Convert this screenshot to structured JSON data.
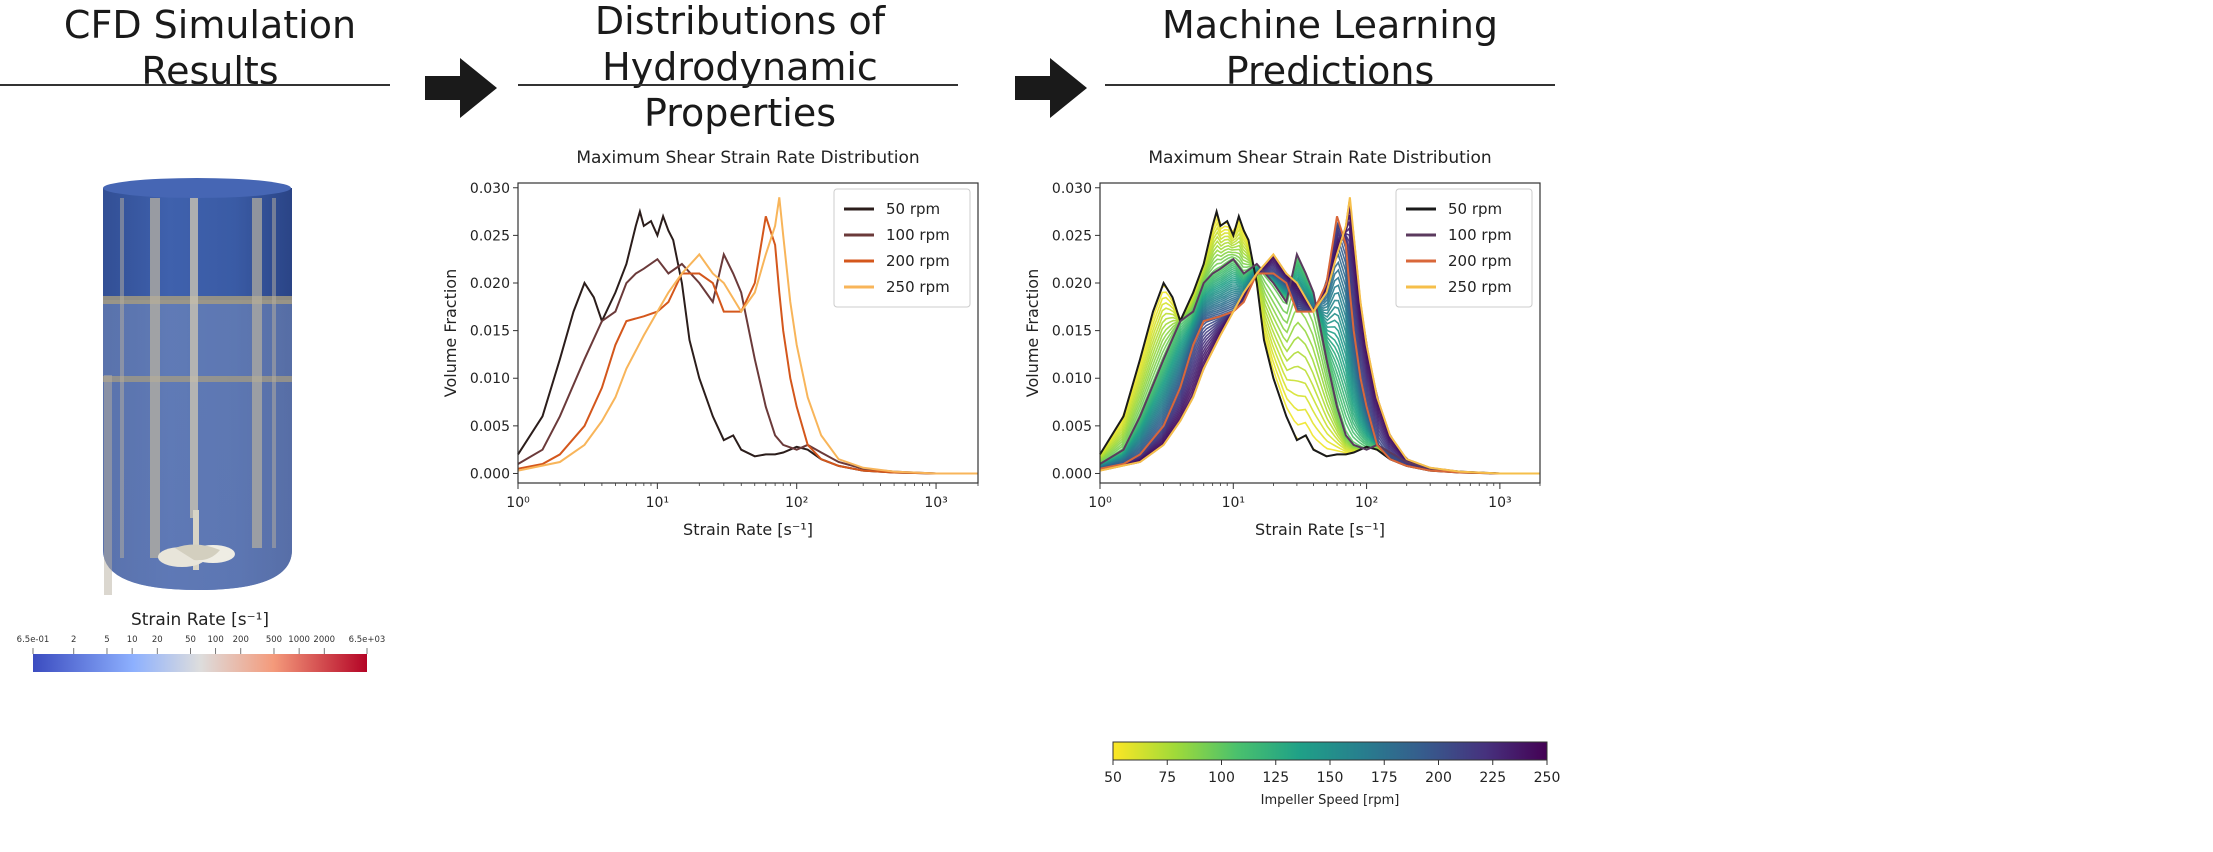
{
  "headings": {
    "cfd": "CFD Simulation\nResults",
    "distributions": "Distributions of\nHydrodynamic Properties",
    "ml": "Machine Learning\nPredictions"
  },
  "tank": {
    "colorbar_title": "Strain Rate [s⁻¹]",
    "colorbar_ticks": [
      "6.5e-01",
      "2",
      "5",
      "10",
      "20",
      "50",
      "100",
      "200",
      "500",
      "1000",
      "2000",
      "6.5e+03"
    ],
    "colormap": [
      "#3b4cc0",
      "#8db0fe",
      "#dddddd",
      "#f49a7b",
      "#b40426"
    ]
  },
  "colorbar_speed": {
    "label": "Impeller Speed [rpm]",
    "ticks": [
      "50",
      "75",
      "100",
      "125",
      "150",
      "175",
      "200",
      "225",
      "250"
    ],
    "colormap": [
      "#fde725",
      "#a0da39",
      "#4ac16d",
      "#1fa187",
      "#277f8e",
      "#365c8d",
      "#46327e",
      "#440154"
    ]
  },
  "chart_data": [
    {
      "type": "line",
      "title": "Maximum Shear Strain Rate Distribution",
      "xlabel": "Strain Rate [s⁻¹]",
      "ylabel": "Volume Fraction",
      "xscale": "log",
      "xlim": [
        1,
        2000
      ],
      "ylim": [
        -0.001,
        0.0305
      ],
      "xticks": [
        "10⁰",
        "10¹",
        "10²",
        "10³"
      ],
      "yticks": [
        "0.000",
        "0.005",
        "0.010",
        "0.015",
        "0.020",
        "0.025",
        "0.030"
      ],
      "legend_position": "top-right",
      "series": [
        {
          "name": "50 rpm",
          "color": "#2b1d1b",
          "x": [
            1,
            1.5,
            2,
            2.5,
            3,
            3.5,
            4,
            5,
            6,
            7,
            7.5,
            8,
            9,
            10,
            11,
            12,
            13,
            15,
            17,
            20,
            25,
            30,
            35,
            40,
            50,
            60,
            70,
            80,
            100,
            120,
            150,
            200,
            300,
            500,
            1000,
            2000
          ],
          "y": [
            0.002,
            0.006,
            0.012,
            0.017,
            0.02,
            0.0185,
            0.016,
            0.019,
            0.022,
            0.026,
            0.0275,
            0.026,
            0.0265,
            0.025,
            0.027,
            0.0255,
            0.0245,
            0.02,
            0.014,
            0.01,
            0.006,
            0.0035,
            0.004,
            0.0025,
            0.0018,
            0.002,
            0.002,
            0.0022,
            0.0028,
            0.0025,
            0.0015,
            0.0008,
            0.0003,
            0.0001,
            0.0,
            0.0
          ]
        },
        {
          "name": "100 rpm",
          "color": "#6b3a3a",
          "x": [
            1,
            1.5,
            2,
            3,
            4,
            5,
            6,
            7,
            8,
            10,
            12,
            15,
            20,
            25,
            30,
            35,
            40,
            50,
            60,
            70,
            80,
            100,
            120,
            150,
            200,
            300,
            500,
            1000,
            2000
          ],
          "y": [
            0.001,
            0.0025,
            0.006,
            0.012,
            0.016,
            0.017,
            0.02,
            0.021,
            0.0215,
            0.0225,
            0.021,
            0.022,
            0.02,
            0.018,
            0.023,
            0.021,
            0.019,
            0.012,
            0.007,
            0.004,
            0.003,
            0.0025,
            0.003,
            0.0022,
            0.0012,
            0.0005,
            0.0002,
            0.0,
            0.0
          ]
        },
        {
          "name": "200 rpm",
          "color": "#d4571c",
          "x": [
            1,
            1.5,
            2,
            3,
            4,
            5,
            6,
            8,
            10,
            12,
            15,
            20,
            25,
            30,
            40,
            50,
            60,
            70,
            75,
            80,
            90,
            100,
            120,
            150,
            200,
            300,
            500,
            1000,
            2000
          ],
          "y": [
            0.0005,
            0.001,
            0.002,
            0.005,
            0.009,
            0.0135,
            0.016,
            0.0165,
            0.017,
            0.018,
            0.021,
            0.021,
            0.02,
            0.017,
            0.017,
            0.02,
            0.027,
            0.024,
            0.019,
            0.015,
            0.01,
            0.007,
            0.003,
            0.0015,
            0.0008,
            0.0003,
            0.0001,
            0.0,
            0.0
          ]
        },
        {
          "name": "250 rpm",
          "color": "#f8b55a",
          "x": [
            1,
            2,
            3,
            4,
            5,
            6,
            8,
            10,
            12,
            15,
            20,
            25,
            30,
            40,
            50,
            60,
            70,
            75,
            80,
            90,
            100,
            120,
            150,
            200,
            300,
            500,
            1000,
            2000
          ],
          "y": [
            0.0003,
            0.0012,
            0.003,
            0.0055,
            0.008,
            0.011,
            0.0145,
            0.017,
            0.019,
            0.021,
            0.023,
            0.021,
            0.02,
            0.017,
            0.019,
            0.023,
            0.026,
            0.029,
            0.025,
            0.018,
            0.0135,
            0.008,
            0.004,
            0.0015,
            0.0006,
            0.0002,
            0.0,
            0.0
          ]
        }
      ]
    },
    {
      "type": "line",
      "title": "Maximum Shear Strain Rate Distribution",
      "xlabel": "Strain Rate [s⁻¹]",
      "ylabel": "Volume Fraction",
      "xscale": "log",
      "xlim": [
        1,
        2000
      ],
      "ylim": [
        -0.001,
        0.0305
      ],
      "xticks": [
        "10⁰",
        "10¹",
        "10²",
        "10³"
      ],
      "yticks": [
        "0.000",
        "0.005",
        "0.010",
        "0.015",
        "0.020",
        "0.025",
        "0.030"
      ],
      "legend_position": "top-right",
      "series": [
        {
          "name": "50 rpm",
          "color": "#1a1a1a"
        },
        {
          "name": "100 rpm",
          "color": "#5b3a5e"
        },
        {
          "name": "200 rpm",
          "color": "#d9673a"
        },
        {
          "name": "250 rpm",
          "color": "#f6bf4a"
        }
      ]
    }
  ]
}
